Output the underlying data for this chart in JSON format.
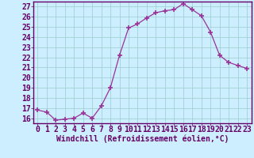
{
  "x": [
    0,
    1,
    2,
    3,
    4,
    5,
    6,
    7,
    8,
    9,
    10,
    11,
    12,
    13,
    14,
    15,
    16,
    17,
    18,
    19,
    20,
    21,
    22,
    23
  ],
  "y": [
    16.8,
    16.6,
    15.8,
    15.9,
    16.0,
    16.5,
    16.0,
    17.2,
    19.0,
    22.2,
    24.9,
    25.3,
    25.9,
    26.4,
    26.6,
    26.7,
    27.3,
    26.7,
    26.1,
    24.5,
    22.2,
    21.5,
    21.2,
    20.9
  ],
  "line_color": "#993399",
  "marker": "+",
  "marker_size": 4,
  "bg_color": "#cceeff",
  "grid_color": "#99cccc",
  "xlabel": "Windchill (Refroidissement éolien,°C)",
  "xlim": [
    -0.5,
    23.5
  ],
  "ylim": [
    15.5,
    27.5
  ],
  "yticks": [
    16,
    17,
    18,
    19,
    20,
    21,
    22,
    23,
    24,
    25,
    26,
    27
  ],
  "xticks": [
    0,
    1,
    2,
    3,
    4,
    5,
    6,
    7,
    8,
    9,
    10,
    11,
    12,
    13,
    14,
    15,
    16,
    17,
    18,
    19,
    20,
    21,
    22,
    23
  ],
  "xlabel_fontsize": 7,
  "tick_fontsize": 7,
  "label_color": "#660066"
}
